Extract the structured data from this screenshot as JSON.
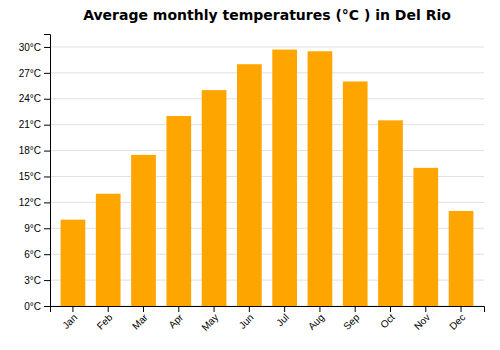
{
  "chart_data": {
    "type": "bar",
    "title": "Average monthly temperatures (°C ) in Del Rio",
    "categories": [
      "Jan",
      "Feb",
      "Mar",
      "Apr",
      "May",
      "Jun",
      "Jul",
      "Aug",
      "Sep",
      "Oct",
      "Nov",
      "Dec"
    ],
    "values": [
      10.0,
      13.0,
      17.5,
      22.0,
      25.0,
      28.0,
      29.7,
      29.5,
      26.0,
      21.5,
      16.0,
      11.0
    ],
    "color": "#FFA500",
    "ylim": [
      0,
      31.5
    ],
    "yticks": [
      {
        "value": 0,
        "label": "0°C"
      },
      {
        "value": 3,
        "label": "3°C"
      },
      {
        "value": 6,
        "label": "6°C"
      },
      {
        "value": 9,
        "label": "9°C"
      },
      {
        "value": 12,
        "label": "12°C"
      },
      {
        "value": 15,
        "label": "15°C"
      },
      {
        "value": 18,
        "label": "18°C"
      },
      {
        "value": 21,
        "label": "21°C"
      },
      {
        "value": 24,
        "label": "24°C"
      },
      {
        "value": 27,
        "label": "27°C"
      },
      {
        "value": 30,
        "label": "30°C"
      }
    ],
    "grid": true
  }
}
